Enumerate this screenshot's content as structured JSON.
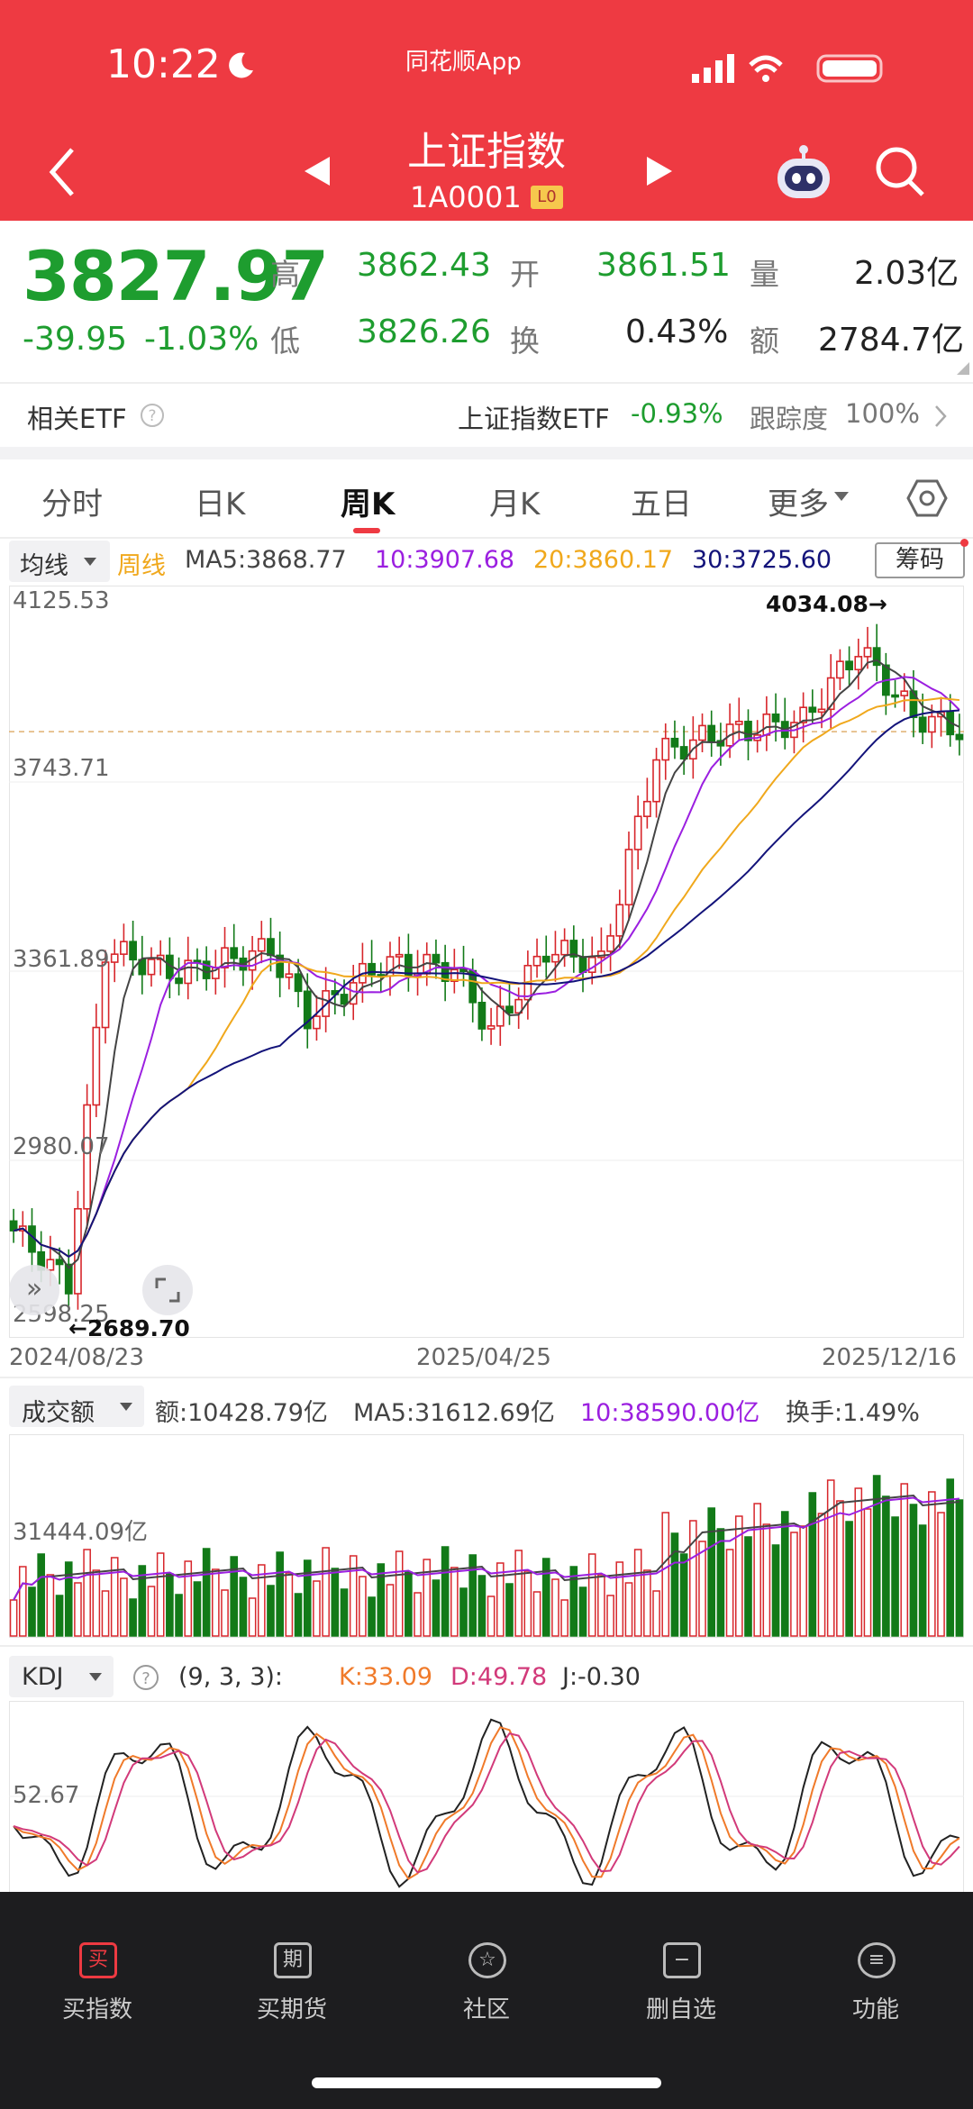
{
  "status": {
    "time": "10:22",
    "app": "同花顺App"
  },
  "header": {
    "title": "上证指数",
    "code": "1A0001",
    "badge": "L0"
  },
  "quote": {
    "price": "3827.97",
    "change": "-39.95",
    "change_pct": "-1.03%",
    "high_label": "高",
    "high": "3862.43",
    "open_label": "开",
    "open": "3861.51",
    "vol_label": "量",
    "vol": "2.03亿",
    "low_label": "低",
    "low": "3826.26",
    "turn_label": "换",
    "turn": "0.43%",
    "amt_label": "额",
    "amt": "2784.7亿"
  },
  "etf": {
    "label": "相关ETF",
    "name": "上证指数ETF",
    "pct": "-0.93%",
    "track_label": "跟踪度",
    "track": "100%"
  },
  "tabs": [
    "分时",
    "日K",
    "周K",
    "月K",
    "五日",
    "更多"
  ],
  "legend": {
    "ma_type": "均线",
    "period": "周线",
    "ma5": "MA5:3868.77",
    "ma10": "10:3907.68",
    "ma20": "20:3860.17",
    "ma30": "30:3725.60",
    "chip": "筹码"
  },
  "kaxis": {
    "y1": "4125.53",
    "y2": "3743.71",
    "y3": "3361.89",
    "y4": "2980.07",
    "y5": "2598.25",
    "max_mark": "4034.08→",
    "min_mark": "←2689.70",
    "d1": "2024/08/23",
    "d2": "2025/04/25",
    "d3": "2025/12/16"
  },
  "vol_legend": {
    "label": "成交额",
    "amt": "额:10428.79亿",
    "ma5": "MA5:31612.69亿",
    "ma10": "10:38590.00亿",
    "turn": "换手:1.49%",
    "axis": "31444.09亿"
  },
  "kdj_legend": {
    "label": "KDJ",
    "params": "(9, 3, 3):",
    "k": "K:33.09",
    "d": "D:49.78",
    "j": "J:-0.30",
    "axis": "52.67"
  },
  "nav": [
    "买指数",
    "买期货",
    "社区",
    "删自选",
    "功能"
  ],
  "nav_icons": [
    "买",
    "期",
    "☆",
    "−",
    "≡"
  ],
  "colors": {
    "up": "#d7262b",
    "down": "#127a18",
    "ma5": "#444444",
    "ma10": "#9b1fe0",
    "ma20": "#f0a81c",
    "ma30": "#13137a"
  }
}
